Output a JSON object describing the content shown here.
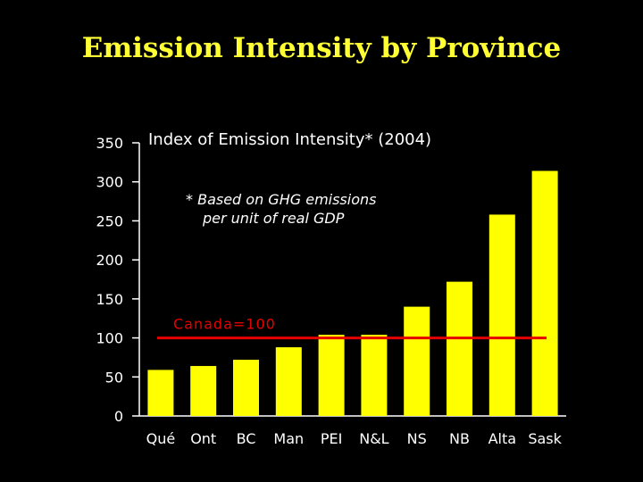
{
  "title": "Emission Intensity by Province",
  "chart_data": {
    "type": "bar",
    "subtitle": "Index of Emission Intensity* (2004)",
    "footnote_line1": "* Based on GHG emissions",
    "footnote_line2": "per unit of real GDP",
    "categories": [
      "Qué",
      "Ont",
      "BC",
      "Man",
      "PEI",
      "N&L",
      "NS",
      "NB",
      "Alta",
      "Sask"
    ],
    "values": [
      59,
      64,
      72,
      88,
      104,
      104,
      140,
      172,
      258,
      314
    ],
    "ylim": [
      0,
      350
    ],
    "yticks": [
      "0",
      "50",
      "100",
      "150",
      "200",
      "250",
      "300",
      "350"
    ],
    "grid": false,
    "reference_line": {
      "label": "Canada=100",
      "value": 100
    },
    "colors": {
      "bar": "#ffff00",
      "reference_line": "#e60000",
      "reference_label": "#e60000",
      "axis": "#ffffff",
      "text": "#ffffff",
      "title": "#ffff33",
      "background": "#000000"
    }
  }
}
